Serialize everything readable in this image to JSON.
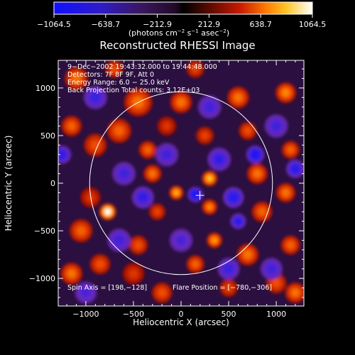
{
  "chart_data": {
    "type": "heatmap",
    "title": "Reconstructed RHESSI Image",
    "xlabel": "Heliocentric X (arcsec)",
    "ylabel": "Heliocentric Y (arcsec)",
    "xlim": [
      -1290,
      1290
    ],
    "ylim": [
      -1290,
      1290
    ],
    "x_ticks": [
      -1000,
      -500,
      0,
      500,
      1000
    ],
    "y_ticks": [
      -1000,
      -500,
      0,
      500,
      1000
    ],
    "x_tick_labels": [
      "−1000",
      "−500",
      "0",
      "500",
      "1000"
    ],
    "y_tick_labels": [
      "−1000",
      "−500",
      "0",
      "500",
      "1000"
    ],
    "colorbar": {
      "min": -1064.5,
      "max": 1064.5,
      "ticks": [
        -1064.5,
        -638.7,
        -212.9,
        212.9,
        638.7,
        1064.5
      ],
      "tick_labels": [
        "−1064.5",
        "−638.7",
        "−212.9",
        "212.9",
        "638.7",
        "1064.5"
      ],
      "units": {
        "base": "(photons cm",
        "e1": "−2",
        "mid1": " s",
        "e2": "−1",
        "mid2": " asec",
        "e3": "−2",
        "end": ")"
      }
    },
    "annotations": {
      "time": "9−Dec−2002 19:43:32.000 to 19:44:48.000",
      "detectors": "Detectors: 7F 8F 9F, Att 0",
      "energy": "Energy Range: 6.0 − 25.0 keV",
      "method": "Back Projection   Total counts: 3.12E+03",
      "spin_axis": "Spin Axis = [198,−128]",
      "flare_position": "Flare Position = [−780,−306]"
    },
    "solar_disk": {
      "center": [
        0,
        0
      ],
      "radius": 960
    },
    "crosshair": {
      "x": 198,
      "y": -128
    },
    "blobs": [
      {
        "x": -770,
        "y": -300,
        "r": 65,
        "v": 1064
      },
      {
        "x": -450,
        "y": 850,
        "r": 110,
        "v": 700
      },
      {
        "x": -650,
        "y": 550,
        "r": 95,
        "v": 650
      },
      {
        "x": -900,
        "y": 400,
        "r": 90,
        "v": 600
      },
      {
        "x": -1150,
        "y": 600,
        "r": 80,
        "v": 650
      },
      {
        "x": -1100,
        "y": 1100,
        "r": 90,
        "v": 700
      },
      {
        "x": -950,
        "y": -150,
        "r": 80,
        "v": 500
      },
      {
        "x": -1050,
        "y": -500,
        "r": 90,
        "v": 650
      },
      {
        "x": -850,
        "y": -850,
        "r": 80,
        "v": 600
      },
      {
        "x": -1150,
        "y": -950,
        "r": 85,
        "v": 700
      },
      {
        "x": -450,
        "y": -650,
        "r": 75,
        "v": 600
      },
      {
        "x": -500,
        "y": -950,
        "r": 85,
        "v": 500
      },
      {
        "x": -350,
        "y": 350,
        "r": 70,
        "v": 650
      },
      {
        "x": -300,
        "y": 100,
        "r": 70,
        "v": 700
      },
      {
        "x": -250,
        "y": -300,
        "r": 65,
        "v": 550
      },
      {
        "x": -150,
        "y": 600,
        "r": 75,
        "v": 500
      },
      {
        "x": 0,
        "y": 850,
        "r": 85,
        "v": 700
      },
      {
        "x": 250,
        "y": 500,
        "r": 70,
        "v": 550
      },
      {
        "x": -50,
        "y": -100,
        "r": 55,
        "v": 850
      },
      {
        "x": 300,
        "y": 50,
        "r": 60,
        "v": 900
      },
      {
        "x": 300,
        "y": -250,
        "r": 60,
        "v": 750
      },
      {
        "x": 350,
        "y": -600,
        "r": 60,
        "v": 800
      },
      {
        "x": 150,
        "y": -850,
        "r": 70,
        "v": 650
      },
      {
        "x": 600,
        "y": 900,
        "r": 85,
        "v": 700
      },
      {
        "x": 700,
        "y": 550,
        "r": 70,
        "v": 600
      },
      {
        "x": 800,
        "y": 100,
        "r": 80,
        "v": 700
      },
      {
        "x": 850,
        "y": -300,
        "r": 80,
        "v": 650
      },
      {
        "x": 700,
        "y": -750,
        "r": 85,
        "v": 700
      },
      {
        "x": 1100,
        "y": 950,
        "r": 80,
        "v": 750
      },
      {
        "x": 1150,
        "y": 350,
        "r": 70,
        "v": 650
      },
      {
        "x": 1100,
        "y": -100,
        "r": 75,
        "v": 700
      },
      {
        "x": 1150,
        "y": -650,
        "r": 75,
        "v": 650
      },
      {
        "x": 1000,
        "y": -1050,
        "r": 80,
        "v": 600
      },
      {
        "x": 1200,
        "y": -1150,
        "r": 80,
        "v": 700
      },
      {
        "x": 500,
        "y": -1100,
        "r": 70,
        "v": 550
      },
      {
        "x": -200,
        "y": -1150,
        "r": 80,
        "v": 600
      },
      {
        "x": 150,
        "y": 1200,
        "r": 70,
        "v": 550
      },
      {
        "x": -700,
        "y": 1200,
        "r": 70,
        "v": 600
      },
      {
        "x": 150,
        "y": -120,
        "r": 60,
        "v": -1000
      },
      {
        "x": 780,
        "y": 300,
        "r": 70,
        "v": -950
      },
      {
        "x": 1200,
        "y": 150,
        "r": 70,
        "v": -850
      },
      {
        "x": -1250,
        "y": 300,
        "r": 70,
        "v": -800
      },
      {
        "x": 400,
        "y": 250,
        "r": 90,
        "v": -750
      },
      {
        "x": -400,
        "y": -150,
        "r": 85,
        "v": -750
      },
      {
        "x": 550,
        "y": -150,
        "r": 80,
        "v": -850
      },
      {
        "x": 600,
        "y": -400,
        "r": 60,
        "v": -850
      },
      {
        "x": -150,
        "y": 300,
        "r": 90,
        "v": -650
      },
      {
        "x": -600,
        "y": 100,
        "r": 90,
        "v": -650
      },
      {
        "x": 1000,
        "y": 600,
        "r": 90,
        "v": -650
      },
      {
        "x": -900,
        "y": 900,
        "r": 90,
        "v": -700
      },
      {
        "x": 300,
        "y": 800,
        "r": 90,
        "v": -650
      },
      {
        "x": -650,
        "y": -600,
        "r": 90,
        "v": -650
      },
      {
        "x": 0,
        "y": -600,
        "r": 90,
        "v": -600
      },
      {
        "x": 500,
        "y": -900,
        "r": 85,
        "v": -700
      },
      {
        "x": 950,
        "y": -900,
        "r": 85,
        "v": -650
      },
      {
        "x": -1000,
        "y": -1150,
        "r": 85,
        "v": -600
      }
    ]
  }
}
